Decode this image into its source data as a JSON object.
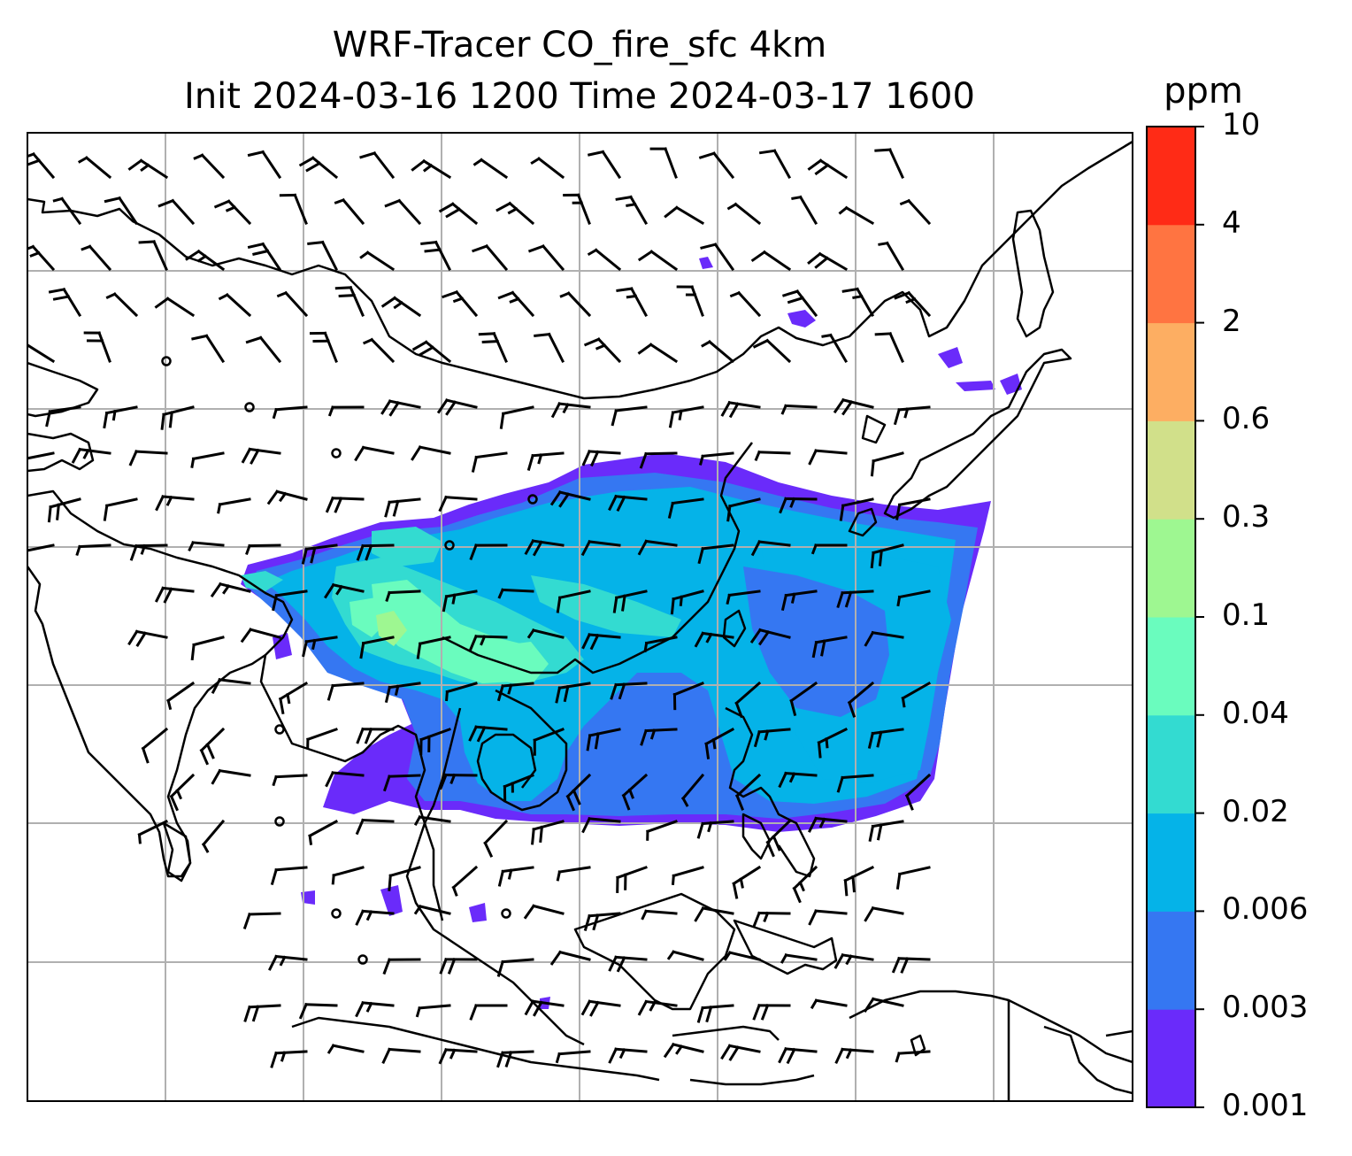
{
  "title": {
    "line1": "WRF-Tracer CO_fire_sfc 4km",
    "line2": "Init 2024-03-16 1200 Time 2024-03-17 1600"
  },
  "colorbar": {
    "unit": "ppm",
    "levels": [
      "0.001",
      "0.003",
      "0.006",
      "0.02",
      "0.04",
      "0.1",
      "0.3",
      "0.6",
      "2",
      "4",
      "10"
    ],
    "colors": [
      "#6a2bfa",
      "#3577f2",
      "#05b3e8",
      "#33dbd1",
      "#6afcbe",
      "#9ef791",
      "#d1e08a",
      "#fdae62",
      "#ff7441",
      "#ff2b16"
    ]
  },
  "map": {
    "field_colors": {
      "level1": "#6a2bfa",
      "level2": "#3577f2",
      "level3": "#05b3e8",
      "level4": "#33dbd1",
      "level5": "#6afcbe",
      "level6": "#9ef791"
    },
    "coastline_color": "#000000",
    "gridline_color": "#b0b0b0",
    "wind_barbs": "black"
  }
}
